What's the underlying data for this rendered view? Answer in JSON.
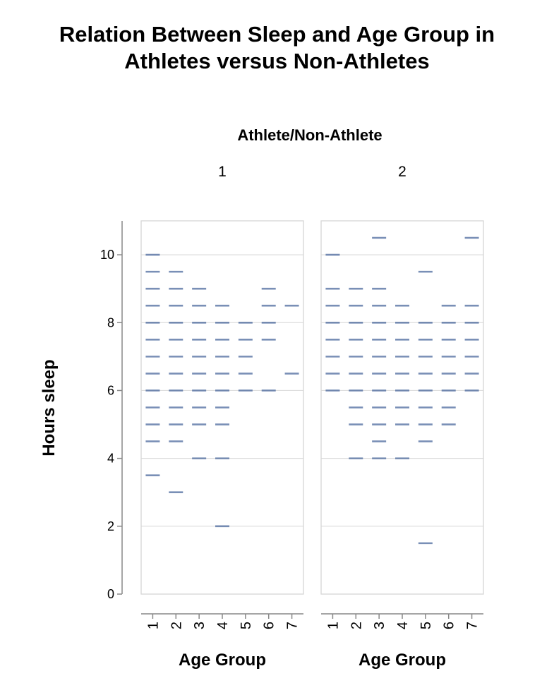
{
  "title_lines": [
    "Relation Between Sleep and Age Group in",
    "Athletes versus Non-Athletes"
  ],
  "chart_data": {
    "type": "tick",
    "title": "Relation Between Sleep and Age Group in Athletes versus Non-Athletes",
    "facet_title": "Athlete/Non-Athlete",
    "facets": [
      "1",
      "2"
    ],
    "xlabel": "Age Group",
    "ylabel": "Hours sleep",
    "categories": [
      "1",
      "2",
      "3",
      "4",
      "5",
      "6",
      "7"
    ],
    "y_ticks": [
      "0",
      "2",
      "4",
      "6",
      "8",
      "10"
    ],
    "ylim": [
      0,
      11
    ],
    "grid": true,
    "mark_color": "#4c6a9e",
    "panels": [
      {
        "facet": "1",
        "points": {
          "1": [
            10,
            9.5,
            9,
            8.5,
            8,
            7.5,
            7,
            6.5,
            6,
            5.5,
            5,
            4.5,
            3.5
          ],
          "2": [
            9.5,
            9,
            8.5,
            8,
            7.5,
            7,
            6.5,
            6,
            5.5,
            5,
            4.5,
            3
          ],
          "3": [
            9,
            8.5,
            8,
            7.5,
            7,
            6.5,
            6,
            5.5,
            5,
            4
          ],
          "4": [
            8.5,
            8,
            7.5,
            7,
            6.5,
            6,
            5.5,
            5,
            4,
            2
          ],
          "5": [
            8,
            7.5,
            7,
            6.5,
            6
          ],
          "6": [
            9,
            8.5,
            8,
            7.5,
            6
          ],
          "7": [
            8.5,
            6.5
          ]
        }
      },
      {
        "facet": "2",
        "points": {
          "1": [
            10,
            9,
            8.5,
            8,
            7.5,
            7,
            6.5,
            6
          ],
          "2": [
            9,
            8.5,
            8,
            7.5,
            7,
            6.5,
            6,
            5.5,
            5,
            4
          ],
          "3": [
            10.5,
            9,
            8.5,
            8,
            7.5,
            7,
            6.5,
            6,
            5.5,
            5,
            4.5,
            4
          ],
          "4": [
            8.5,
            8,
            7.5,
            7,
            6.5,
            6,
            5.5,
            5,
            4
          ],
          "5": [
            9.5,
            8,
            7.5,
            7,
            6.5,
            6,
            5.5,
            5,
            4.5,
            1.5
          ],
          "6": [
            8.5,
            8,
            7.5,
            7,
            6.5,
            6,
            5.5,
            5
          ],
          "7": [
            10.5,
            8.5,
            8,
            7.5,
            7,
            6.5,
            6
          ]
        }
      }
    ]
  }
}
